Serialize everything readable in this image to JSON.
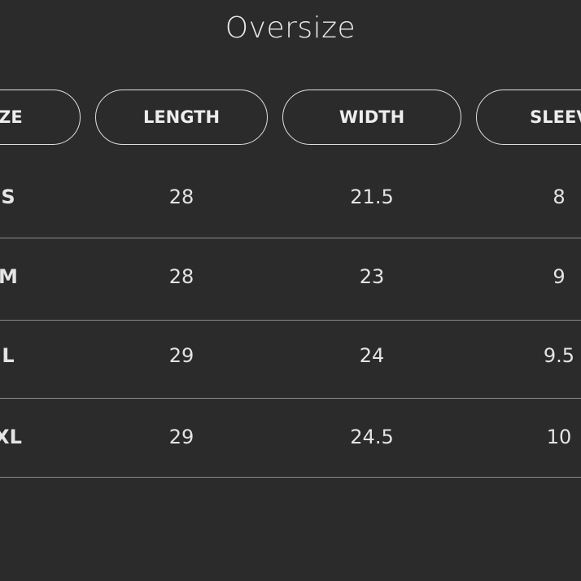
{
  "title": "Oversize",
  "table": {
    "headers": [
      "SIZE",
      "LENGTH",
      "WIDTH",
      "SLEEVE"
    ],
    "rows": [
      [
        "S",
        "28",
        "21.5",
        "8"
      ],
      [
        "M",
        "28",
        "23",
        "9"
      ],
      [
        "L",
        "29",
        "24",
        "9.5"
      ],
      [
        "XL",
        "29",
        "24.5",
        "10"
      ]
    ]
  }
}
